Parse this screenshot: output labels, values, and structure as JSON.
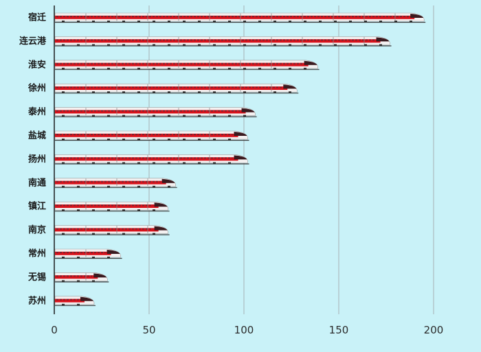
{
  "chart_data": {
    "type": "bar",
    "orientation": "horizontal",
    "categories": [
      "宿迁",
      "连云港",
      "淮安",
      "徐州",
      "泰州",
      "盐城",
      "扬州",
      "南通",
      "镇江",
      "南京",
      "常州",
      "无锡",
      "苏州"
    ],
    "values": [
      195,
      177,
      139,
      128,
      106,
      102,
      102,
      64,
      60,
      60,
      35,
      28,
      21
    ],
    "title": "",
    "xlabel": "",
    "ylabel": "",
    "xlim": [
      0,
      200
    ],
    "xticks": [
      0,
      50,
      100,
      150,
      200
    ],
    "grid": true,
    "bar_style": "high-speed-train",
    "colors": {
      "background": "#c9f2f8",
      "train_body": "#f4f1f1",
      "train_stripe": "#d8121b",
      "train_windows": "#7a2430",
      "train_nose": "#3a1a1f",
      "gridline": "#a8b0b4"
    }
  }
}
